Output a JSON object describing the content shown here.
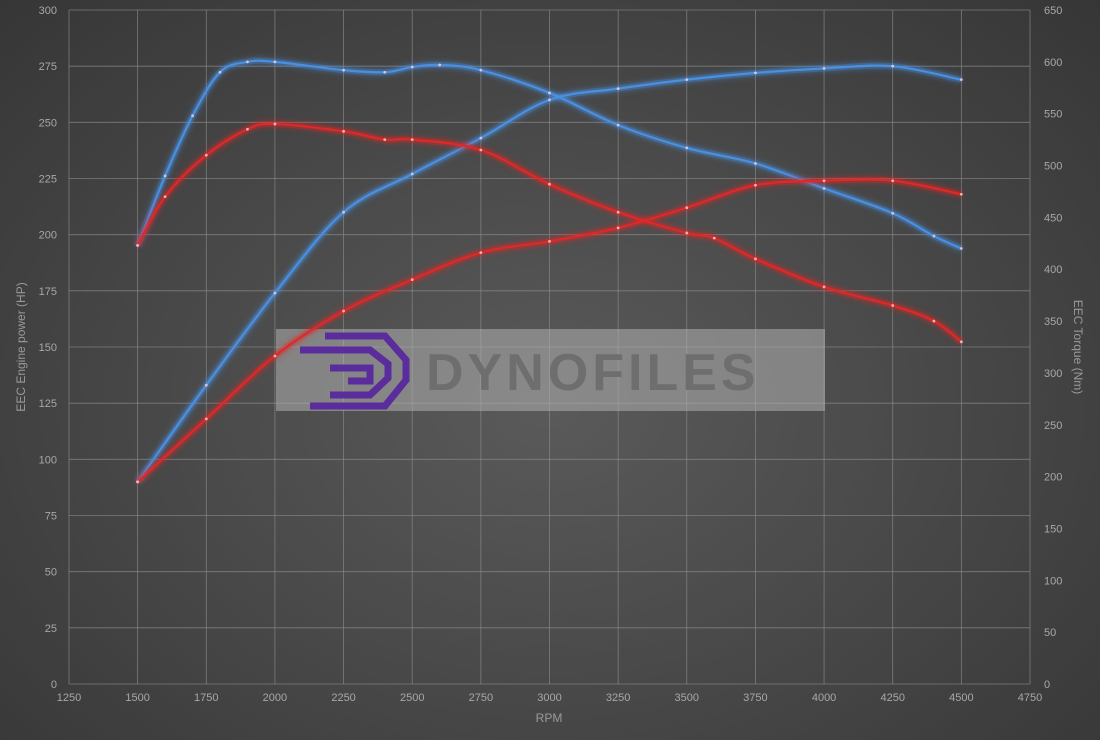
{
  "chart_data": {
    "type": "line",
    "title": "",
    "xlabel": "RPM",
    "ylabel": "EEC Engine power (HP)",
    "y2label": "EEC Torque (Nm)",
    "xlim": [
      1250,
      4750
    ],
    "ylim": [
      0,
      300
    ],
    "y2lim": [
      0,
      650
    ],
    "xticks": [
      1250,
      1500,
      1750,
      2000,
      2250,
      2500,
      2750,
      3000,
      3250,
      3500,
      3750,
      4000,
      4250,
      4500,
      4750
    ],
    "yticks": [
      0,
      25,
      50,
      75,
      100,
      125,
      150,
      175,
      200,
      225,
      250,
      275,
      300
    ],
    "y2ticks": [
      0,
      50,
      100,
      150,
      200,
      250,
      300,
      350,
      400,
      450,
      500,
      550,
      600,
      650
    ],
    "grid": true,
    "legend": "none",
    "series": [
      {
        "axis": "left",
        "color": "#4a90e2",
        "x": [
          1500,
          1750,
          2000,
          2250,
          2500,
          2750,
          3000,
          3250,
          3500,
          3750,
          4000,
          4250,
          4500
        ],
        "values": [
          90,
          133,
          174,
          210,
          227,
          243,
          260,
          265,
          269,
          272,
          274,
          275,
          269
        ]
      },
      {
        "axis": "right",
        "color": "#4a90e2",
        "x": [
          1500,
          1600,
          1700,
          1800,
          1900,
          2000,
          2250,
          2400,
          2500,
          2600,
          2750,
          3000,
          3250,
          3500,
          3750,
          4000,
          4250,
          4400,
          4500
        ],
        "values": [
          423,
          490,
          548,
          590,
          600,
          600,
          592,
          590,
          595,
          597,
          592,
          570,
          539,
          517,
          502,
          478,
          454,
          432,
          420
        ]
      },
      {
        "axis": "left",
        "color": "#e02828",
        "x": [
          1500,
          1750,
          2000,
          2250,
          2500,
          2750,
          3000,
          3250,
          3500,
          3750,
          4000,
          4250,
          4500
        ],
        "values": [
          90,
          118,
          146,
          166,
          180,
          192,
          197,
          203,
          212,
          222,
          224,
          224,
          218
        ]
      },
      {
        "axis": "right",
        "color": "#e02828",
        "x": [
          1500,
          1600,
          1750,
          1900,
          2000,
          2250,
          2400,
          2500,
          2750,
          3000,
          3250,
          3500,
          3600,
          3750,
          4000,
          4250,
          4400,
          4500
        ],
        "values": [
          423,
          470,
          510,
          535,
          540,
          533,
          525,
          525,
          515,
          482,
          455,
          435,
          430,
          410,
          383,
          365,
          350,
          330
        ]
      }
    ]
  },
  "watermark": {
    "text": "DYNOFILES",
    "logo_color": "#5b2d9c"
  }
}
